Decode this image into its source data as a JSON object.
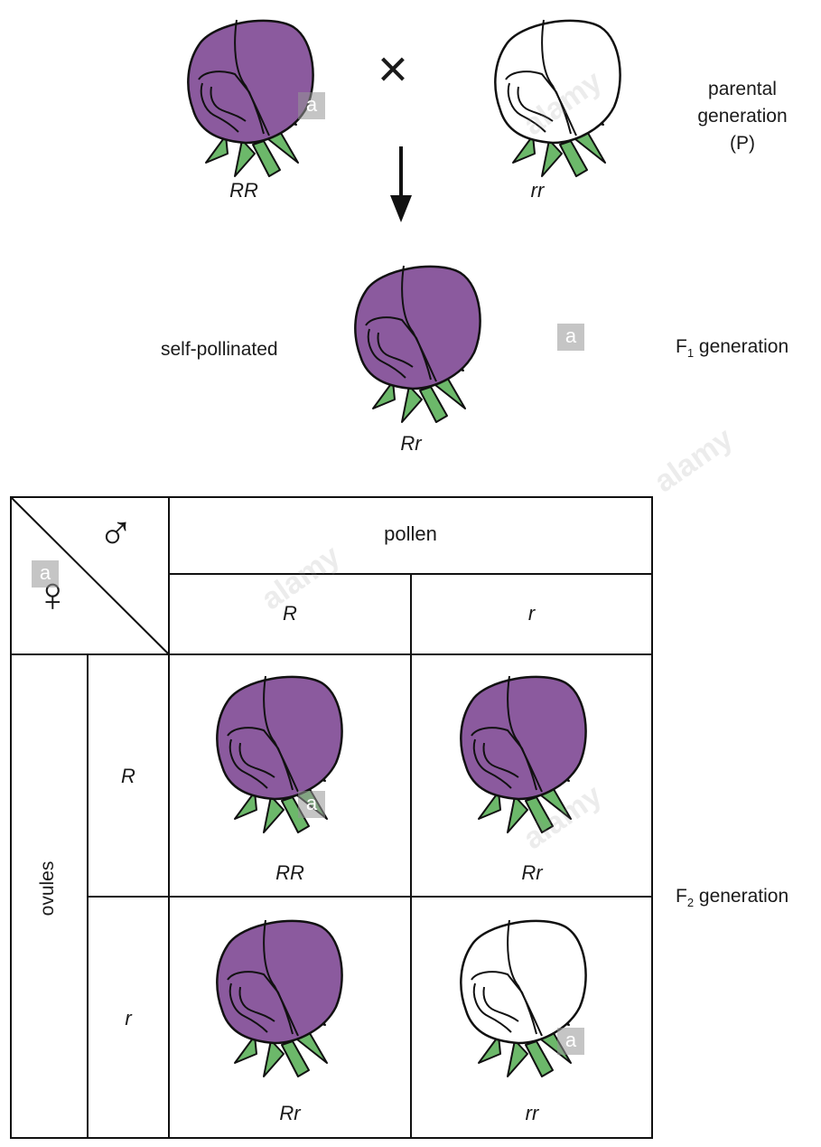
{
  "parental": {
    "cross_symbol": "×",
    "left_genotype": "RR",
    "right_genotype": "rr",
    "label_lines": [
      "parental",
      "generation",
      "(P)"
    ]
  },
  "f1": {
    "side_label": "self-pollinated",
    "genotype": "Rr",
    "gen_label_prefix": "F",
    "gen_label_sub": "1",
    "gen_label_suffix": " generation"
  },
  "punnett": {
    "male_symbol": "♂",
    "female_symbol": "♀",
    "pollen_label": "pollen",
    "pollen_alleles": [
      "R",
      "r"
    ],
    "ovules_label": "ovules",
    "ovule_alleles": [
      "R",
      "r"
    ],
    "cells": [
      "RR",
      "Rr",
      "Rr",
      "rr"
    ]
  },
  "f2": {
    "gen_label_prefix": "F",
    "gen_label_sub": "2",
    "gen_label_suffix": " generation"
  },
  "colors": {
    "purple": "#8B5A9E",
    "white": "#ffffff",
    "leaf": "#6CB86A",
    "outline": "#111111"
  },
  "watermark": {
    "letter": "a",
    "word": "alamy"
  }
}
